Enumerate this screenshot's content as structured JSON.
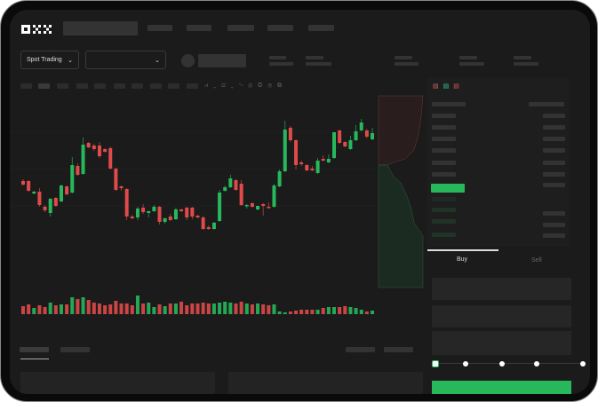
{
  "brand": {
    "logo": "OKX"
  },
  "market": {
    "type_selector": "Spot Trading",
    "pair_selector": ""
  },
  "trade": {
    "tabs": [
      {
        "label": "Buy",
        "active": true
      },
      {
        "label": "Sell",
        "active": false
      }
    ],
    "slider_fraction": 0,
    "slider_stops": 5
  },
  "colors": {
    "up": "#27b85c",
    "down": "#df4a4a",
    "background": "#1b1b1b",
    "placeholder": "#333333"
  },
  "icons": [
    "chevron-down-icon",
    "order-book-both-icon",
    "order-book-buy-icon",
    "order-book-sell-icon",
    "indicator-icon",
    "draw-line-icon",
    "ruler-icon",
    "magnet-icon",
    "settings-icon",
    "fullscreen-icon"
  ],
  "chart_data": {
    "type": "candlestick",
    "candles": [
      [
        97,
        99,
        92,
        93
      ],
      [
        97,
        98,
        85,
        86
      ],
      [
        83,
        86,
        82,
        85
      ],
      [
        85,
        89,
        68,
        70
      ],
      [
        68,
        70,
        62,
        64
      ],
      [
        61,
        78,
        57,
        77
      ],
      [
        78,
        79,
        68,
        69
      ],
      [
        74,
        93,
        73,
        92
      ],
      [
        91,
        92,
        81,
        82
      ],
      [
        84,
        124,
        83,
        115
      ],
      [
        114,
        117,
        103,
        104
      ],
      [
        105,
        146,
        104,
        138
      ],
      [
        140,
        141,
        134,
        135
      ],
      [
        137,
        139,
        131,
        133
      ],
      [
        137,
        141,
        123,
        125
      ],
      [
        133,
        134,
        129,
        130
      ],
      [
        134,
        136,
        110,
        111
      ],
      [
        111,
        112,
        86,
        87
      ],
      [
        91,
        92,
        86,
        89
      ],
      [
        88,
        89,
        53,
        57
      ],
      [
        57,
        59,
        54,
        55
      ],
      [
        56,
        68,
        53,
        66
      ],
      [
        67,
        71,
        60,
        62
      ],
      [
        61,
        64,
        56,
        63
      ],
      [
        63,
        70,
        62,
        68
      ],
      [
        68,
        69,
        48,
        51
      ],
      [
        51,
        56,
        49,
        55
      ],
      [
        57,
        60,
        52,
        53
      ],
      [
        54,
        67,
        53,
        65
      ],
      [
        65,
        66,
        62,
        63
      ],
      [
        67,
        68,
        53,
        56
      ],
      [
        67,
        68,
        54,
        57
      ],
      [
        58,
        59,
        55,
        56
      ],
      [
        56,
        58,
        42,
        43
      ],
      [
        45,
        47,
        42,
        43
      ],
      [
        43,
        51,
        42,
        50
      ],
      [
        52,
        87,
        51,
        84
      ],
      [
        86,
        92,
        85,
        90
      ],
      [
        90,
        104,
        89,
        100
      ],
      [
        98,
        99,
        86,
        87
      ],
      [
        94,
        98,
        69,
        70
      ],
      [
        69,
        71,
        66,
        70
      ],
      [
        72,
        73,
        67,
        68
      ],
      [
        65,
        69,
        64,
        69
      ],
      [
        71,
        72,
        58,
        69
      ],
      [
        68,
        73,
        66,
        67
      ],
      [
        68,
        94,
        67,
        92
      ],
      [
        91,
        110,
        90,
        108
      ],
      [
        108,
        165,
        107,
        155
      ],
      [
        157,
        159,
        141,
        143
      ],
      [
        143,
        144,
        110,
        115
      ],
      [
        118,
        120,
        114,
        116
      ],
      [
        115,
        116,
        108,
        109
      ],
      [
        111,
        114,
        108,
        109
      ],
      [
        106,
        123,
        105,
        120
      ],
      [
        122,
        126,
        119,
        120
      ],
      [
        118,
        127,
        117,
        122
      ],
      [
        123,
        152,
        122,
        152
      ],
      [
        154,
        155,
        139,
        140
      ],
      [
        141,
        142,
        135,
        136
      ],
      [
        133,
        148,
        132,
        143
      ],
      [
        143,
        160,
        142,
        153
      ],
      [
        154,
        167,
        153,
        163
      ],
      [
        154,
        156,
        145,
        147
      ],
      [
        144,
        157,
        143,
        151
      ]
    ],
    "volume": [
      9,
      11,
      7,
      10,
      8,
      13,
      10,
      11,
      11,
      19,
      17,
      19,
      16,
      13,
      12,
      10,
      11,
      15,
      12,
      12,
      10,
      21,
      12,
      13,
      8,
      11,
      9,
      12,
      12,
      14,
      10,
      12,
      12,
      13,
      12,
      12,
      13,
      14,
      13,
      12,
      14,
      12,
      11,
      12,
      11,
      10,
      11,
      3,
      2,
      3,
      4,
      5,
      5,
      5,
      5,
      7,
      8,
      8,
      8,
      9,
      8,
      7,
      5,
      3,
      4
    ]
  }
}
